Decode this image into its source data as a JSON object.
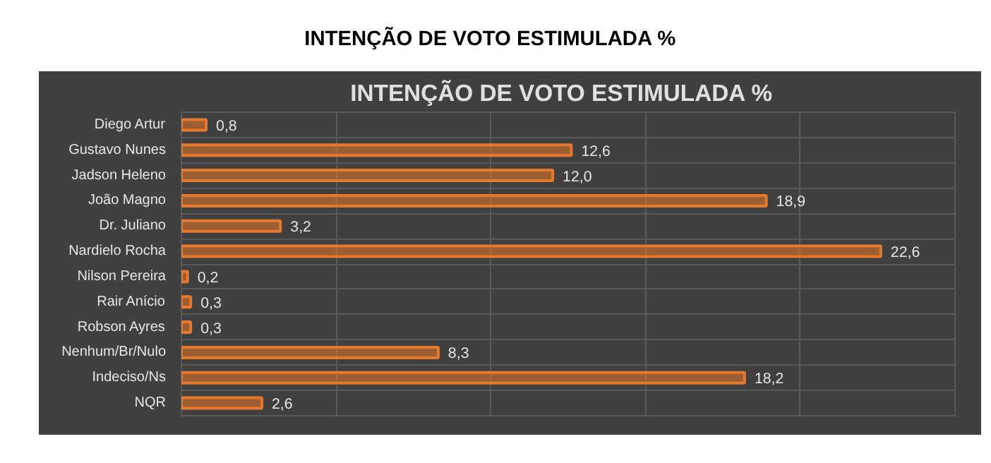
{
  "chart_data": {
    "type": "bar",
    "orientation": "horizontal",
    "title": "INTENÇÃO DE VOTO ESTIMULADA   %",
    "subtitle": "INTENÇÃO DE VOTO ESTIMULADA   %",
    "categories": [
      "Diego Artur",
      "Gustavo Nunes",
      "Jadson Heleno",
      "João Magno",
      "Dr. Juliano",
      "Nardielo Rocha",
      "Nilson Pereira",
      "Rair Anício",
      "Robson Ayres",
      "Nenhum/Br/Nulo",
      "Indeciso/Ns",
      "NQR"
    ],
    "values": [
      0.8,
      12.6,
      12.0,
      18.9,
      3.2,
      22.6,
      0.2,
      0.3,
      0.3,
      8.3,
      18.2,
      2.6
    ],
    "value_labels": [
      "0,8",
      "12,6",
      "12,0",
      "18,9",
      "3,2",
      "22,6",
      "0,2",
      "0,3",
      "0,3",
      "8,3",
      "18,2",
      "2,6"
    ],
    "color": "#e8782a",
    "xlim": [
      0,
      25
    ],
    "xticks": [
      {
        "value": 0,
        "label": null
      },
      {
        "value": 5,
        "label": null
      },
      {
        "value": 10,
        "label": null
      },
      {
        "value": 15,
        "label": null
      },
      {
        "value": 20,
        "label": null
      },
      {
        "value": 25,
        "label": null
      }
    ],
    "tick_labels": "y",
    "grid": true
  }
}
